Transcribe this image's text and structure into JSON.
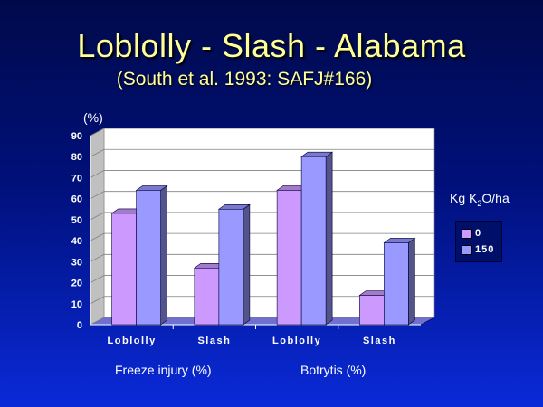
{
  "title": "Loblolly - Slash - Alabama",
  "subtitle": "(South et al. 1993: SAFJ#166)",
  "colors": {
    "series_0": "#cc99ff",
    "series_150": "#9999ff",
    "wall": "#ffffff",
    "floor": "#7070d0"
  },
  "chart_data": {
    "type": "bar",
    "unit_label": "(%)",
    "categories": [
      "Loblolly",
      "Slash",
      "Loblolly",
      "Slash"
    ],
    "group_labels": [
      "Freeze injury (%)",
      "Botrytis (%)"
    ],
    "ylim": [
      0,
      90
    ],
    "y_ticks": [
      0,
      10,
      20,
      30,
      40,
      50,
      60,
      70,
      80,
      90
    ],
    "grid": true,
    "legend_title": "Kg K2O/ha",
    "legend_position": "right",
    "series": [
      {
        "name": "0",
        "values": [
          53,
          27,
          64,
          14
        ]
      },
      {
        "name": "150",
        "values": [
          64,
          55,
          80,
          39
        ]
      }
    ]
  }
}
